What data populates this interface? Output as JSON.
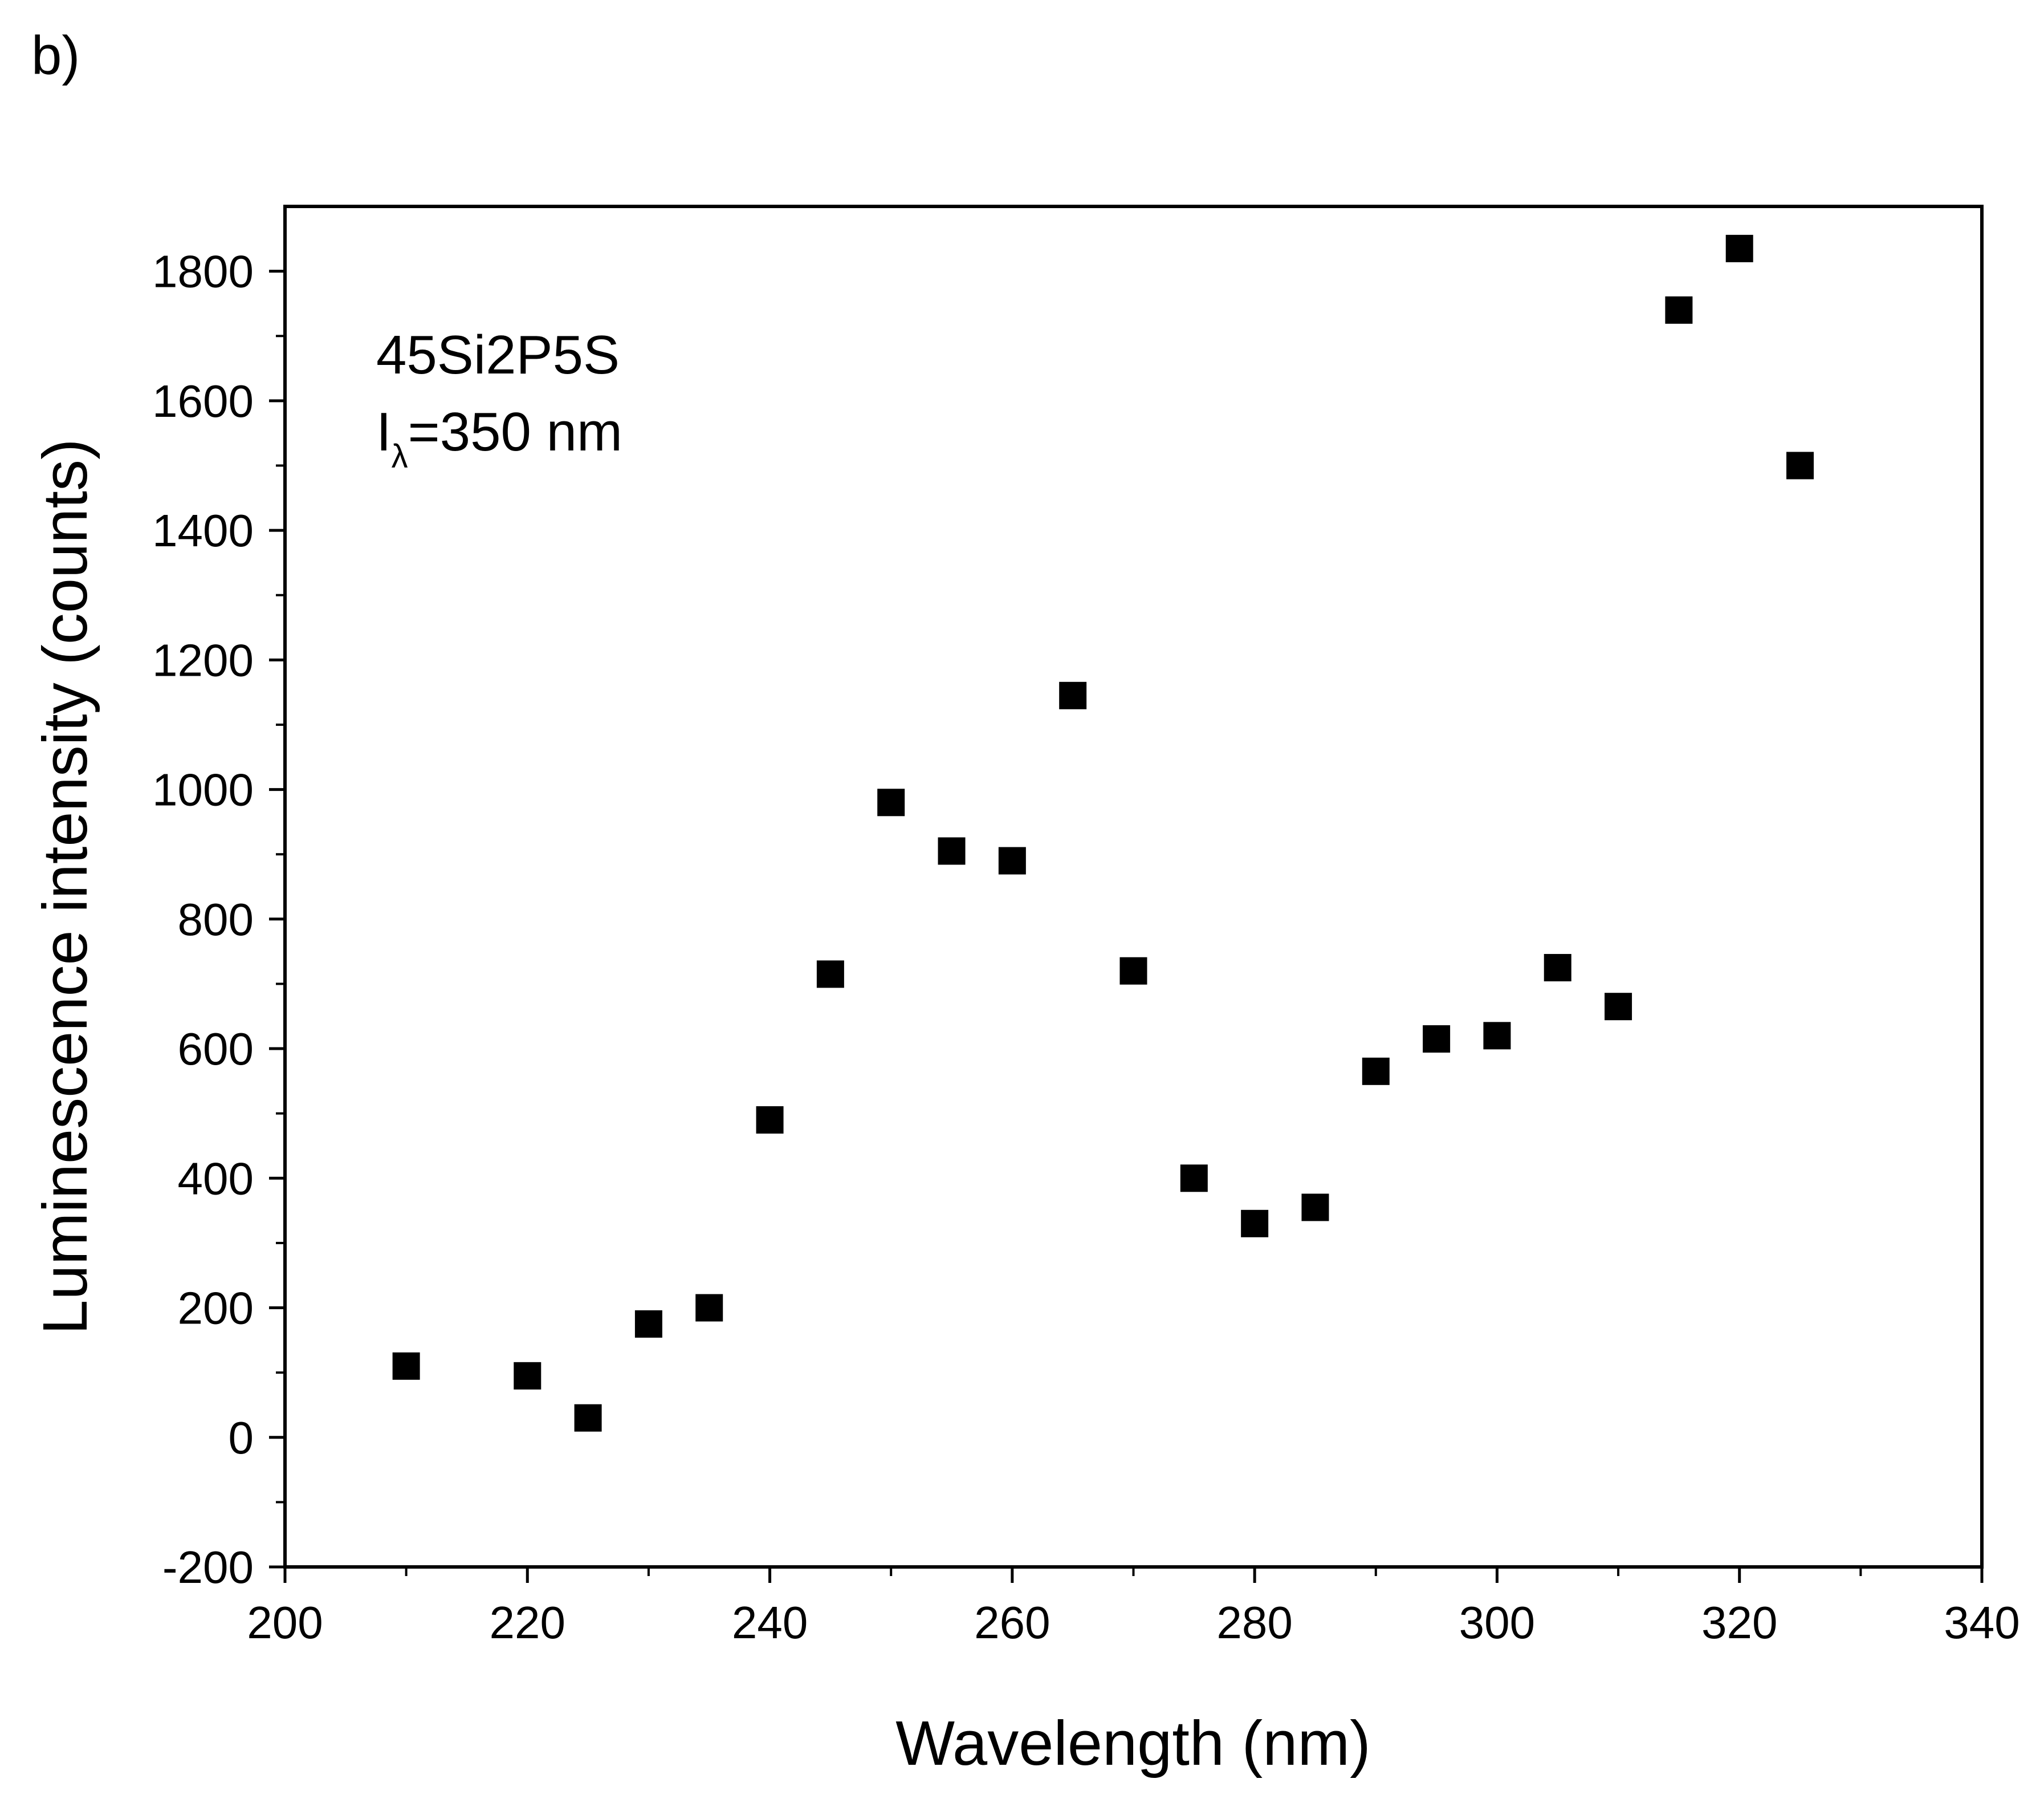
{
  "panel_label": "b)",
  "chart_data": {
    "type": "scatter",
    "title": "",
    "xlabel": "Wavelength (nm)",
    "ylabel": "Luminescence intensity (counts)",
    "xlim": [
      200,
      340
    ],
    "ylim": [
      -200,
      1900
    ],
    "x_ticks": [
      200,
      220,
      240,
      260,
      280,
      300,
      320,
      340
    ],
    "y_ticks": [
      -200,
      0,
      200,
      400,
      600,
      800,
      1000,
      1200,
      1400,
      1600,
      1800
    ],
    "grid": false,
    "marker": "square",
    "marker_color": "#000000",
    "annotation": {
      "line1": "45Si2P5S",
      "line2_main": "I",
      "line2_sub": "λ",
      "line2_rest": "=350 nm"
    },
    "series": [
      {
        "x": [
          210,
          220,
          225,
          230,
          235,
          240,
          245,
          250,
          255,
          260,
          265,
          270,
          275,
          280,
          285,
          290,
          295,
          300,
          305,
          310,
          315,
          320,
          325
        ],
        "y": [
          110,
          95,
          30,
          175,
          200,
          490,
          715,
          980,
          905,
          890,
          1145,
          720,
          400,
          330,
          355,
          565,
          615,
          620,
          725,
          665,
          1740,
          1835,
          1500
        ]
      }
    ]
  }
}
